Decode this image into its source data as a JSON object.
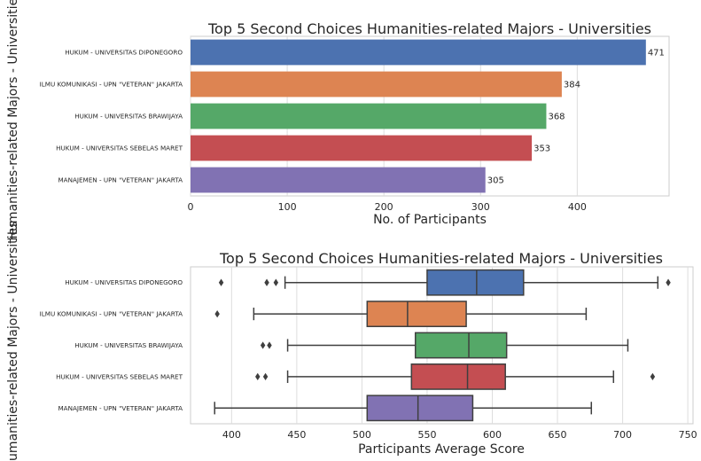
{
  "chart_data": [
    {
      "type": "bar",
      "orientation": "horizontal",
      "title": "Top 5 Second Choices Humanities-related Majors - Universities",
      "xlabel": "No. of Participants",
      "ylabel": "Humanities-related Majors - Universities",
      "categories": [
        "HUKUM - UNIVERSITAS DIPONEGORO",
        "ILMU KOMUNIKASI - UPN \"VETERAN\" JAKARTA",
        "HUKUM - UNIVERSITAS BRAWIJAYA",
        "HUKUM - UNIVERSITAS SEBELAS MARET",
        "MANAJEMEN - UPN \"VETERAN\" JAKARTA"
      ],
      "values": [
        471,
        384,
        368,
        353,
        305
      ],
      "value_labels": [
        "471",
        "384",
        "368",
        "353",
        "305"
      ],
      "colors": [
        "#4c72b0",
        "#dd8452",
        "#55a868",
        "#c44e52",
        "#8172b3"
      ],
      "xlim": [
        0,
        495
      ],
      "xticks": [
        0,
        100,
        200,
        300,
        400
      ],
      "xtick_labels": [
        "0",
        "100",
        "200",
        "300",
        "400"
      ],
      "grid": "vertical"
    },
    {
      "type": "boxplot",
      "orientation": "horizontal",
      "title": "Top 5 Second Choices Humanities-related Majors - Universities",
      "xlabel": "Participants Average Score",
      "ylabel": "Humanities-related Majors - Universities",
      "categories": [
        "HUKUM - UNIVERSITAS DIPONEGORO",
        "ILMU KOMUNIKASI - UPN \"VETERAN\" JAKARTA",
        "HUKUM - UNIVERSITAS BRAWIJAYA",
        "HUKUM - UNIVERSITAS SEBELAS MARET",
        "MANAJEMEN - UPN \"VETERAN\" JAKARTA"
      ],
      "boxes": [
        {
          "whislo": 441,
          "q1": 550,
          "med": 588,
          "q3": 624,
          "whishi": 727,
          "fliers": [
            392,
            427,
            434,
            735
          ]
        },
        {
          "whislo": 417,
          "q1": 504,
          "med": 535,
          "q3": 580,
          "whishi": 672,
          "fliers": [
            389
          ]
        },
        {
          "whislo": 443,
          "q1": 541,
          "med": 582,
          "q3": 611,
          "whishi": 704,
          "fliers": [
            424,
            429
          ]
        },
        {
          "whislo": 443,
          "q1": 538,
          "med": 581,
          "q3": 610,
          "whishi": 693,
          "fliers": [
            420,
            426,
            723
          ]
        },
        {
          "whislo": 387,
          "q1": 504,
          "med": 543,
          "q3": 585,
          "whishi": 676,
          "fliers": []
        }
      ],
      "colors": [
        "#4c72b0",
        "#dd8452",
        "#55a868",
        "#c44e52",
        "#8172b3"
      ],
      "xlim": [
        368.5,
        754
      ],
      "xticks": [
        400,
        450,
        500,
        550,
        600,
        650,
        700,
        750
      ],
      "xtick_labels": [
        "400",
        "450",
        "500",
        "550",
        "600",
        "650",
        "700",
        "750"
      ],
      "grid": "vertical"
    }
  ]
}
